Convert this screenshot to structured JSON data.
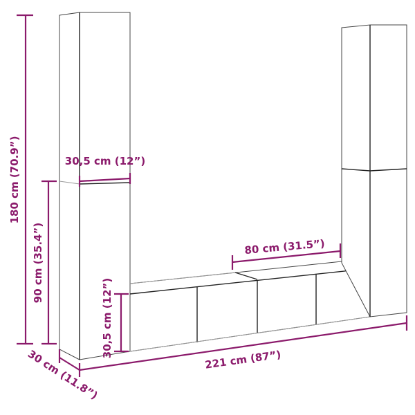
{
  "colors": {
    "dimension": "#8b1a6b",
    "outline": "#444444",
    "background": "#ffffff"
  },
  "dimensions": {
    "total_height": "180 cm (70.9”)",
    "lower_tower_height": "90 cm (35.4”)",
    "tower_width": "30,5 cm (12”)",
    "low_unit_height": "30,5 cm (12”)",
    "low_unit_width": "80 cm (31.5”)",
    "total_width": "221 cm (87”)",
    "depth": "30 cm (11.8”)"
  }
}
